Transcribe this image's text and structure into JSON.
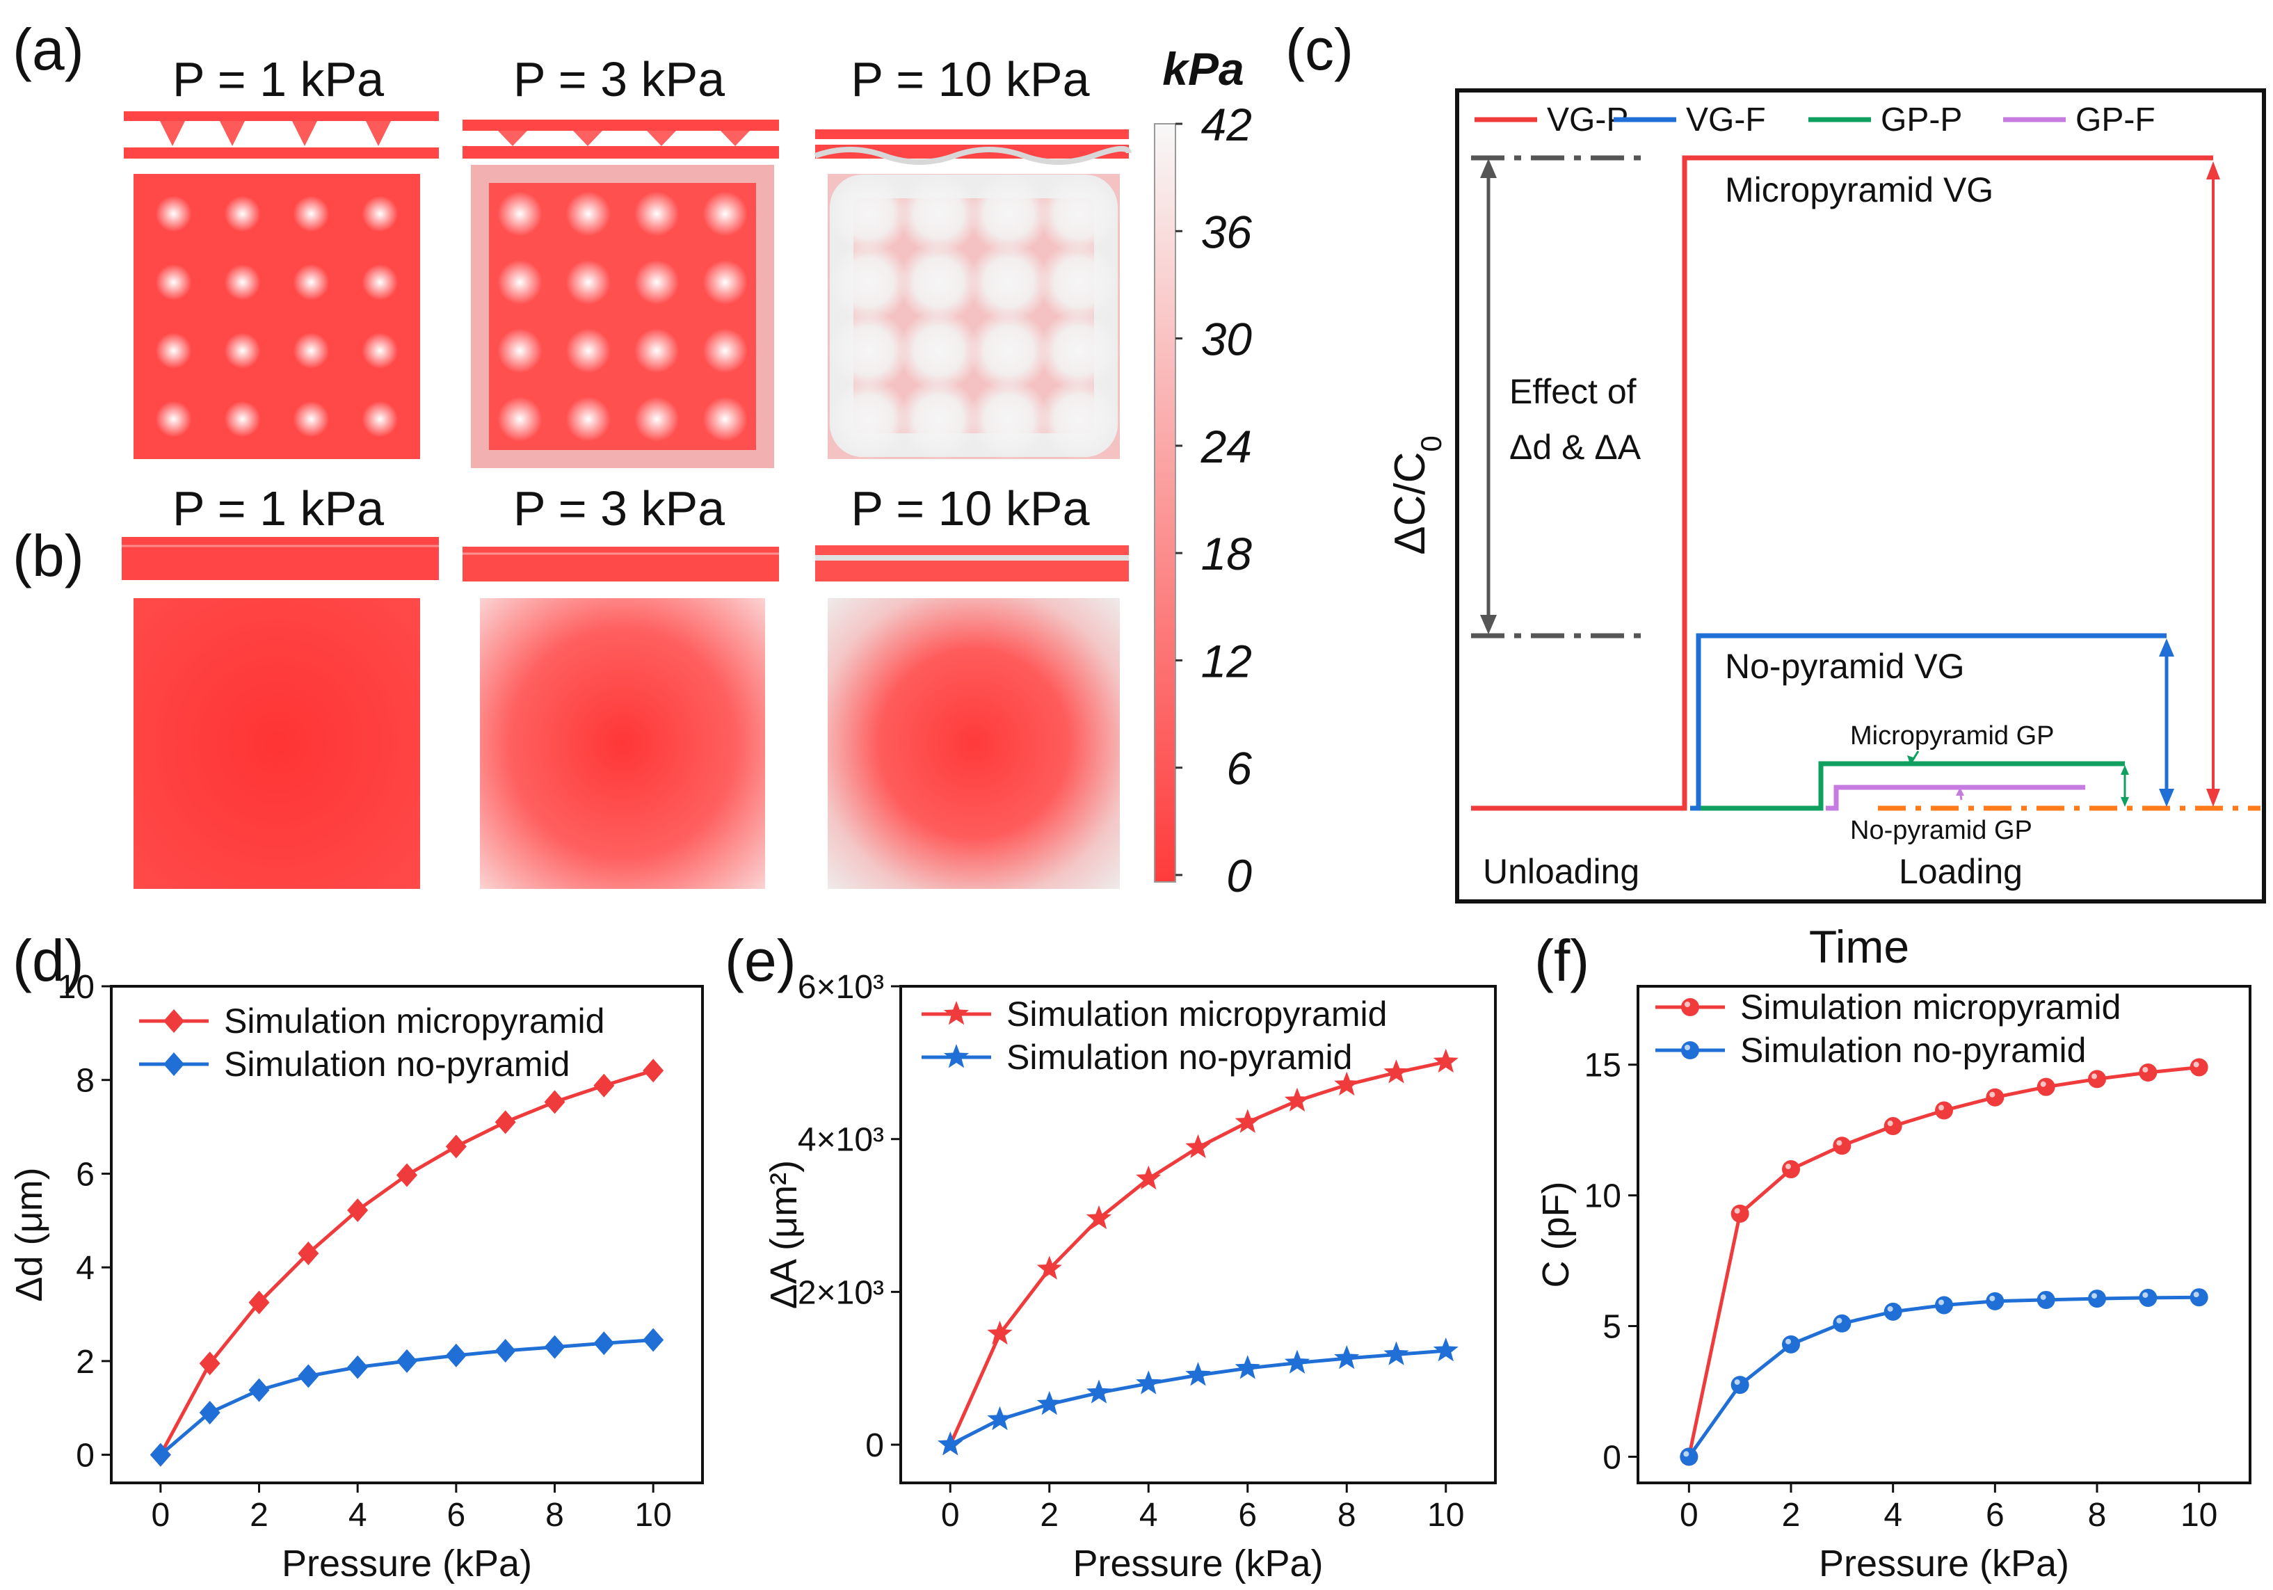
{
  "colors": {
    "red": "#ef3b3b",
    "blue": "#1f6fd6",
    "green": "#0fa060",
    "purple": "#c57be0",
    "orange": "#ff7a1a",
    "gray": "#555555",
    "map_low": "#ff3b3b",
    "map_high": "#f8f8f8"
  },
  "panel_labels": {
    "a": "(a)",
    "b": "(b)",
    "c": "(c)",
    "d": "(d)",
    "e": "(e)",
    "f": "(f)"
  },
  "fem_panels": {
    "row_a_titles": [
      "P = 1 kPa",
      "P = 3 kPa",
      "P = 10 kPa"
    ],
    "row_b_titles": [
      "P = 1 kPa",
      "P = 3 kPa",
      "P = 10 kPa"
    ],
    "colorbar": {
      "unit": "kPa",
      "ticks": [
        "42",
        "36",
        "30",
        "24",
        "18",
        "12",
        "6",
        "0"
      ],
      "min": 0,
      "max": 42
    }
  },
  "schematic_c": {
    "legend": [
      {
        "label": "VG-P",
        "color": "#ef3b3b"
      },
      {
        "label": "VG-F",
        "color": "#1f6fd6"
      },
      {
        "label": "GP-P",
        "color": "#0fa060"
      },
      {
        "label": "GP-F",
        "color": "#c57be0"
      }
    ],
    "ylabel_main": "ΔC/C",
    "ylabel_sub": "0",
    "xlabel": "Time",
    "labels": {
      "micropyramid_vg": "Micropyramid VG",
      "no_pyramid_vg": "No-pyramid VG",
      "micropyramid_gp": "Micropyramid GP",
      "no_pyramid_gp": "No-pyramid GP",
      "effect_line1": "Effect of",
      "effect_line2": "Δd & ΔA",
      "unloading": "Unloading",
      "loading": "Loading"
    }
  },
  "chart_data": [
    {
      "id": "d",
      "type": "line",
      "xlabel": "Pressure (kPa)",
      "ylabel": "Δd (μm)",
      "xlim": [
        -1,
        11
      ],
      "ylim": [
        -0.6,
        10
      ],
      "xticks": [
        0,
        2,
        4,
        6,
        8,
        10
      ],
      "yticks": [
        0,
        2,
        4,
        6,
        8,
        10
      ],
      "ytick_labels": [
        "0",
        "2",
        "4",
        "6",
        "8",
        "10"
      ],
      "marker": "diamond",
      "x": [
        0,
        1,
        2,
        3,
        4,
        5,
        6,
        7,
        8,
        9,
        10
      ],
      "series": [
        {
          "name": "Simulation micropyramid",
          "color": "#ef3b3b",
          "values": [
            0,
            1.95,
            3.25,
            4.3,
            5.22,
            5.97,
            6.58,
            7.1,
            7.53,
            7.88,
            8.2
          ]
        },
        {
          "name": "Simulation no-pyramid",
          "color": "#1f6fd6",
          "values": [
            0,
            0.9,
            1.38,
            1.68,
            1.87,
            2.0,
            2.12,
            2.22,
            2.3,
            2.38,
            2.45
          ]
        }
      ]
    },
    {
      "id": "e",
      "type": "line",
      "xlabel": "Pressure (kPa)",
      "ylabel": "ΔA (μm²)",
      "xlim": [
        -1,
        11
      ],
      "ylim": [
        -500,
        6000
      ],
      "xticks": [
        0,
        2,
        4,
        6,
        8,
        10
      ],
      "yticks": [
        0,
        2000,
        4000,
        6000
      ],
      "ytick_labels": [
        "0",
        "2×10³",
        "4×10³",
        "6×10³"
      ],
      "marker": "star",
      "x": [
        0,
        1,
        2,
        3,
        4,
        5,
        6,
        7,
        8,
        9,
        10
      ],
      "series": [
        {
          "name": "Simulation micropyramid",
          "color": "#ef3b3b",
          "values": [
            0,
            1450,
            2300,
            2960,
            3480,
            3890,
            4220,
            4500,
            4710,
            4870,
            5010
          ]
        },
        {
          "name": "Simulation no-pyramid",
          "color": "#1f6fd6",
          "values": [
            0,
            330,
            530,
            680,
            800,
            910,
            1000,
            1070,
            1130,
            1180,
            1230
          ]
        }
      ]
    },
    {
      "id": "f",
      "type": "line",
      "xlabel": "Pressure (kPa)",
      "ylabel": "C (pF)",
      "xlim": [
        -1,
        11
      ],
      "ylim": [
        -1,
        18
      ],
      "xticks": [
        0,
        2,
        4,
        6,
        8,
        10
      ],
      "yticks": [
        0,
        5,
        10,
        15
      ],
      "ytick_labels": [
        "0",
        "5",
        "10",
        "15"
      ],
      "marker": "circle",
      "x": [
        0,
        1,
        2,
        3,
        4,
        5,
        6,
        7,
        8,
        9,
        10
      ],
      "series": [
        {
          "name": "Simulation micropyramid",
          "color": "#ef3b3b",
          "values": [
            0,
            9.3,
            11.0,
            11.9,
            12.65,
            13.25,
            13.75,
            14.15,
            14.45,
            14.7,
            14.9
          ]
        },
        {
          "name": "Simulation no-pyramid",
          "color": "#1f6fd6",
          "values": [
            0,
            2.75,
            4.3,
            5.1,
            5.55,
            5.8,
            5.95,
            6.0,
            6.05,
            6.08,
            6.1
          ]
        }
      ]
    }
  ]
}
